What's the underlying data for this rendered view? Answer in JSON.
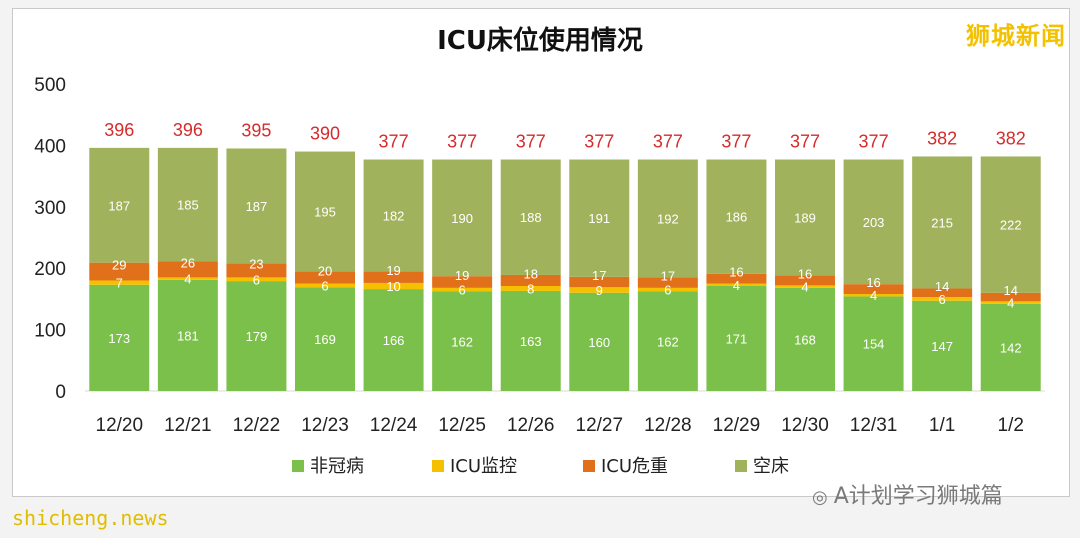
{
  "title": "ICU床位使用情况",
  "watermark": "狮城新闻",
  "footer_source": "shicheng.news",
  "footer_account_icon": "wechat-icon",
  "footer_account": "A计划学习狮城篇",
  "colors": {
    "non_covid": "#7cc04c",
    "monitor": "#f5c000",
    "critical": "#e1701a",
    "empty": "#a0b35c",
    "total_label": "#d52b2b"
  },
  "chart_data": {
    "type": "bar",
    "stacked": true,
    "title": "ICU床位使用情况",
    "categories": [
      "12/20",
      "12/21",
      "12/22",
      "12/23",
      "12/24",
      "12/25",
      "12/26",
      "12/27",
      "12/28",
      "12/29",
      "12/30",
      "12/31",
      "1/1",
      "1/2"
    ],
    "series": [
      {
        "name": "非冠病",
        "key": "non_covid",
        "values": [
          173,
          181,
          179,
          169,
          166,
          162,
          163,
          160,
          162,
          171,
          168,
          154,
          147,
          142
        ]
      },
      {
        "name": "ICU监控",
        "key": "monitor",
        "values": [
          7,
          4,
          6,
          6,
          10,
          6,
          8,
          9,
          6,
          4,
          4,
          4,
          6,
          4
        ]
      },
      {
        "name": "ICU危重",
        "key": "critical",
        "values": [
          29,
          26,
          23,
          20,
          19,
          19,
          18,
          17,
          17,
          16,
          16,
          16,
          14,
          14
        ]
      },
      {
        "name": "空床",
        "key": "empty",
        "values": [
          187,
          185,
          187,
          195,
          182,
          190,
          188,
          191,
          192,
          186,
          189,
          203,
          215,
          222
        ]
      }
    ],
    "totals": [
      396,
      396,
      395,
      390,
      377,
      377,
      377,
      377,
      377,
      377,
      377,
      377,
      382,
      382
    ],
    "ylim": [
      0,
      500
    ],
    "yticks": [
      0,
      100,
      200,
      300,
      400,
      500
    ],
    "grid": false,
    "legend_position": "bottom"
  }
}
